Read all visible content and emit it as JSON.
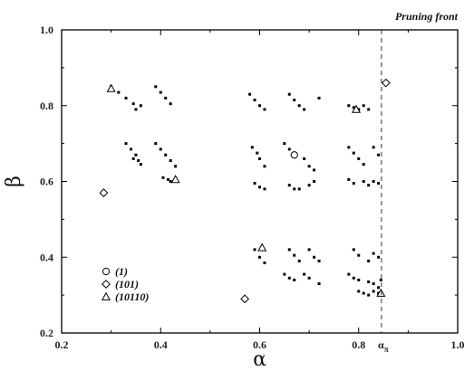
{
  "chart_data": {
    "type": "scatter",
    "xlabel": "α",
    "ylabel": "β",
    "xlim": [
      0.2,
      1.0
    ],
    "ylim": [
      0.2,
      1.0
    ],
    "x_ticks": [
      "0.2",
      "0.4",
      "0.6",
      "0.8",
      "1.0"
    ],
    "y_ticks": [
      "0.2",
      "0.4",
      "0.6",
      "0.8",
      "1.0"
    ],
    "grid": false,
    "legend_position": "bottom-left",
    "pruning_front": {
      "label": "Pruning front",
      "x": 0.846,
      "tick_label": "α",
      "tick_subscript": "π"
    },
    "dot_clusters": [
      {
        "x": [
          0.3,
          0.315,
          0.33,
          0.345,
          0.35,
          0.36
        ],
        "y": [
          0.85,
          0.835,
          0.82,
          0.805,
          0.79,
          0.8
        ]
      },
      {
        "x": [
          0.33,
          0.34,
          0.35,
          0.355,
          0.36,
          0.345
        ],
        "y": [
          0.7,
          0.685,
          0.67,
          0.655,
          0.645,
          0.66
        ]
      },
      {
        "x": [
          0.39,
          0.4,
          0.41,
          0.42
        ],
        "y": [
          0.85,
          0.835,
          0.82,
          0.805
        ]
      },
      {
        "x": [
          0.39,
          0.4,
          0.41,
          0.42,
          0.43
        ],
        "y": [
          0.7,
          0.685,
          0.67,
          0.655,
          0.64
        ]
      },
      {
        "x": [
          0.405,
          0.415,
          0.42,
          0.43
        ],
        "y": [
          0.61,
          0.605,
          0.6,
          0.6
        ]
      },
      {
        "x": [
          0.58,
          0.59,
          0.6,
          0.61
        ],
        "y": [
          0.83,
          0.815,
          0.8,
          0.79
        ]
      },
      {
        "x": [
          0.585,
          0.595,
          0.6,
          0.61
        ],
        "y": [
          0.69,
          0.675,
          0.66,
          0.64
        ]
      },
      {
        "x": [
          0.59,
          0.6,
          0.61
        ],
        "y": [
          0.595,
          0.585,
          0.58
        ]
      },
      {
        "x": [
          0.66,
          0.67,
          0.68,
          0.69,
          0.72
        ],
        "y": [
          0.83,
          0.815,
          0.8,
          0.79,
          0.82
        ]
      },
      {
        "x": [
          0.65,
          0.66,
          0.67,
          0.69,
          0.7,
          0.71
        ],
        "y": [
          0.7,
          0.685,
          0.67,
          0.66,
          0.64,
          0.63
        ]
      },
      {
        "x": [
          0.66,
          0.67,
          0.68,
          0.7,
          0.71
        ],
        "y": [
          0.59,
          0.58,
          0.58,
          0.59,
          0.6
        ]
      },
      {
        "x": [
          0.59,
          0.6,
          0.61
        ],
        "y": [
          0.42,
          0.4,
          0.385
        ]
      },
      {
        "x": [
          0.66,
          0.67,
          0.68,
          0.7,
          0.71,
          0.72
        ],
        "y": [
          0.42,
          0.405,
          0.39,
          0.42,
          0.4,
          0.39
        ]
      },
      {
        "x": [
          0.65,
          0.66,
          0.67,
          0.69,
          0.7,
          0.72
        ],
        "y": [
          0.355,
          0.345,
          0.34,
          0.355,
          0.345,
          0.33
        ]
      },
      {
        "x": [
          0.78,
          0.79,
          0.8,
          0.81,
          0.82
        ],
        "y": [
          0.8,
          0.795,
          0.79,
          0.8,
          0.79
        ]
      },
      {
        "x": [
          0.78,
          0.79,
          0.8,
          0.81,
          0.83,
          0.84
        ],
        "y": [
          0.69,
          0.675,
          0.66,
          0.645,
          0.69,
          0.67
        ]
      },
      {
        "x": [
          0.78,
          0.79,
          0.81,
          0.82,
          0.83,
          0.84
        ],
        "y": [
          0.605,
          0.595,
          0.6,
          0.59,
          0.6,
          0.595
        ]
      },
      {
        "x": [
          0.79,
          0.8,
          0.82,
          0.83,
          0.84
        ],
        "y": [
          0.42,
          0.405,
          0.39,
          0.41,
          0.4
        ]
      },
      {
        "x": [
          0.78,
          0.79,
          0.8,
          0.82,
          0.83,
          0.84,
          0.845
        ],
        "y": [
          0.355,
          0.345,
          0.34,
          0.335,
          0.33,
          0.32,
          0.34
        ]
      },
      {
        "x": [
          0.8,
          0.81,
          0.82,
          0.83,
          0.84
        ],
        "y": [
          0.31,
          0.305,
          0.3,
          0.31,
          0.305
        ]
      }
    ],
    "series": [
      {
        "name": "(1)",
        "marker": "circle",
        "x": [
          0.67
        ],
        "y": [
          0.67
        ]
      },
      {
        "name": "(101)",
        "marker": "diamond",
        "x": [
          0.285,
          0.57,
          0.855
        ],
        "y": [
          0.57,
          0.29,
          0.86
        ]
      },
      {
        "name": "(10110)",
        "marker": "triangle",
        "x": [
          0.3,
          0.43,
          0.605,
          0.795,
          0.845
        ],
        "y": [
          0.845,
          0.605,
          0.425,
          0.79,
          0.305
        ]
      }
    ]
  }
}
